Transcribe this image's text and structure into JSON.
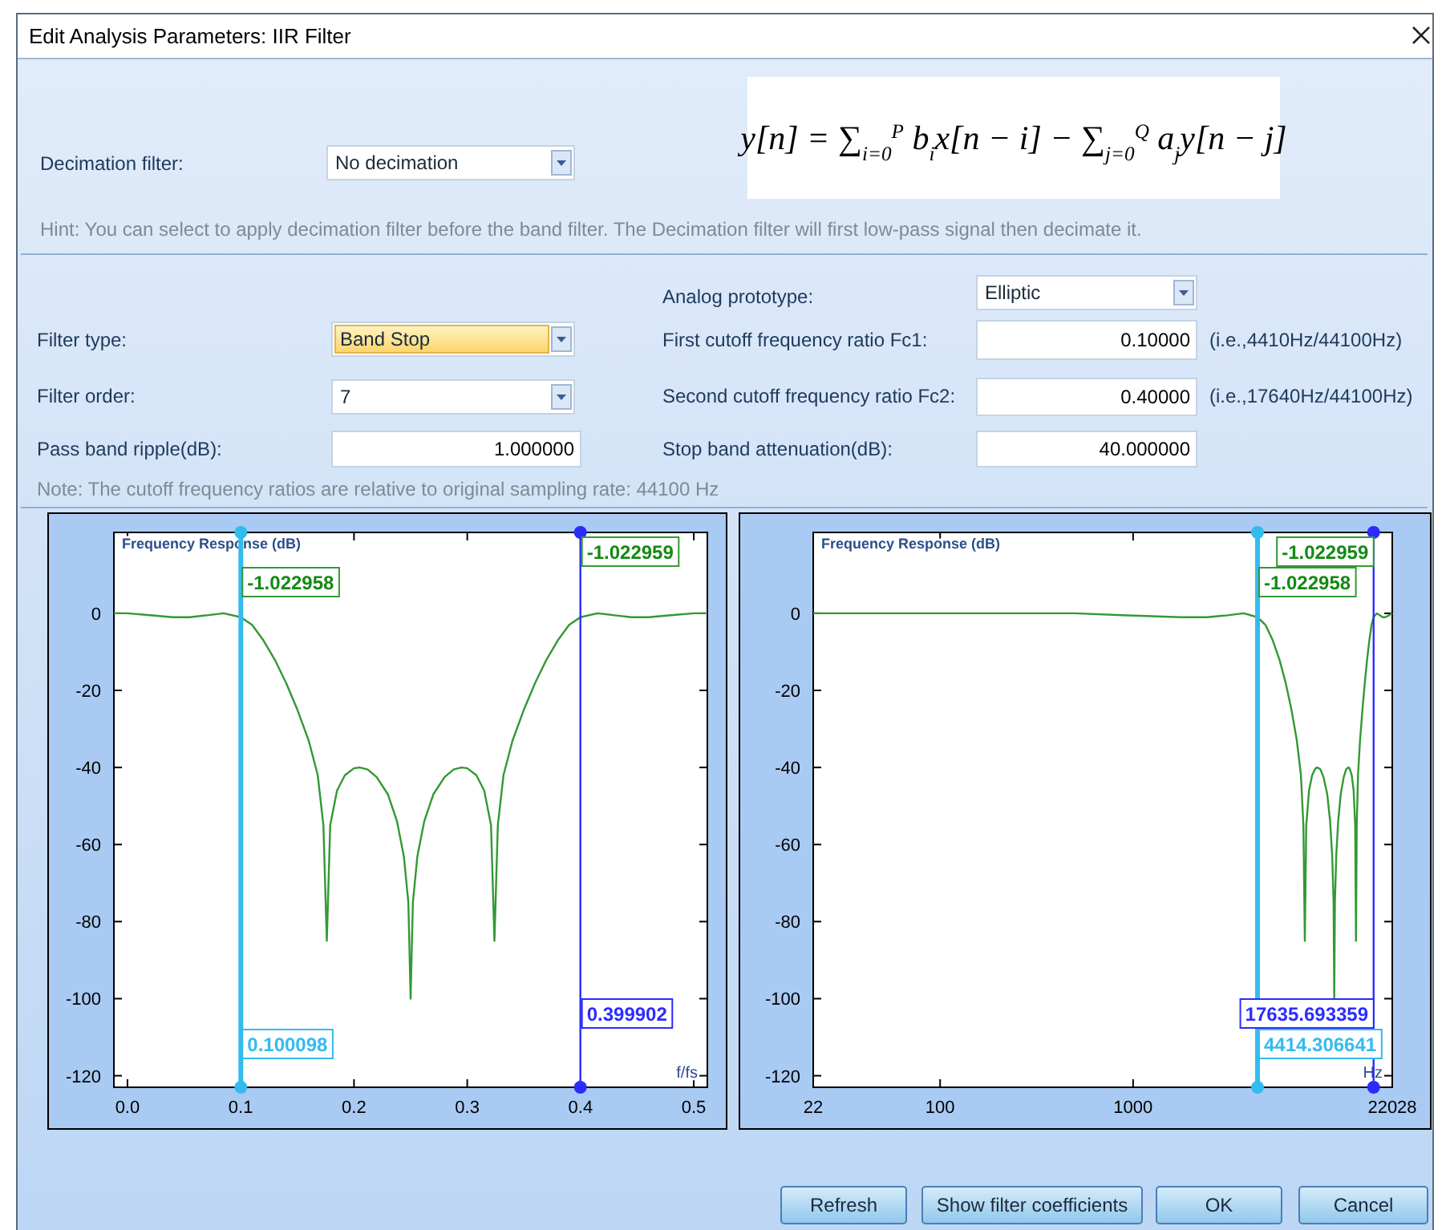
{
  "chart_data": [
    {
      "type": "other",
      "title": "Edit Analysis Parameters: IIR Filter",
      "annotations": [
        "Decimation filter:",
        "No decimation",
        "y[n] = ∑$_{i=0}$$^{P}$ b$_{i}$x[n − i] − ∑$_{j=0}$$^{Q}$ a$_{j}$y[n − j]",
        "Hint: You can select to apply decimation filter before the band filter. The Decimation filter will first low-pass signal then decimate it.",
        "Analog prototype:",
        "Elliptic",
        "Filter type:",
        "Band Stop",
        "First cutoff frequency ratio Fc1:",
        "0.10000",
        "(i.e.,4410Hz/44100Hz)",
        "Filter order:",
        "7",
        "Second cutoff frequency ratio Fc2:",
        "0.40000",
        "(i.e.,17640Hz/44100Hz)",
        "Pass band ripple(dB):",
        "1.000000",
        "Stop band attenuation(dB):",
        "40.000000",
        "Note: The cutoff frequency ratios are relative to original sampling rate: 44100 Hz",
        "Refresh",
        "Show filter coefficients",
        "OK",
        "Cancel"
      ]
    },
    {
      "type": "line",
      "title": "Frequency Response (dB)",
      "xlabel": "f/fs",
      "xlim": [
        -0.012,
        0.512
      ],
      "xticks": [
        {
          "value": 0,
          "label": "0.0"
        },
        0.1,
        0.2,
        0.3,
        0.4,
        0.5
      ],
      "ylim": [
        -123,
        21
      ],
      "yticks": [
        0,
        -20,
        -40,
        -60,
        -80,
        -100,
        -120
      ],
      "series": [
        {
          "color": "#339933",
          "x": [
            -0.012,
            0,
            0.02,
            0.04,
            0.055,
            0.07,
            0.085,
            0.1,
            0.11,
            0.12,
            0.13,
            0.14,
            0.15,
            0.16,
            0.168,
            0.173,
            0.176,
            0.179,
            0.185,
            0.192,
            0.2,
            0.205,
            0.212,
            0.22,
            0.23,
            0.238,
            0.244,
            0.248,
            0.25,
            0.252,
            0.256,
            0.262,
            0.27,
            0.28,
            0.288,
            0.295,
            0.3,
            0.308,
            0.315,
            0.321,
            0.324,
            0.327,
            0.332,
            0.34,
            0.35,
            0.36,
            0.37,
            0.38,
            0.39,
            0.4,
            0.415,
            0.43,
            0.445,
            0.46,
            0.48,
            0.5,
            0.512
          ],
          "values": [
            0,
            0,
            -0.5,
            -1,
            -1,
            -0.5,
            0,
            -1,
            -3,
            -7,
            -12,
            -18,
            -25,
            -33,
            -42,
            -55,
            -85,
            -55,
            -46,
            -42,
            -40.2,
            -40,
            -40.5,
            -42.5,
            -47,
            -54,
            -63,
            -75,
            -100,
            -75,
            -63,
            -54,
            -47,
            -42.5,
            -40.5,
            -40,
            -40.2,
            -42,
            -46,
            -55,
            -85,
            -55,
            -42,
            -33,
            -25,
            -18,
            -12,
            -7,
            -3,
            -1,
            0,
            -0.5,
            -1,
            -1,
            -0.5,
            0,
            0
          ]
        }
      ],
      "ref_lines": [
        {
          "axis": "x",
          "value": 0.100098,
          "label": "0.100098",
          "color": "#33bbee"
        },
        {
          "axis": "x",
          "value": 0.399902,
          "label": "0.399902",
          "color": "#2b2bff"
        }
      ],
      "annotations": [
        "-1.022958",
        "-1.022959"
      ]
    },
    {
      "type": "line",
      "title": "Frequency Response (dB)",
      "xlabel": "Hz",
      "log": "x",
      "xlim": [
        22,
        22028
      ],
      "xticks": [
        22,
        100,
        1000,
        22028
      ],
      "ylim": [
        -123,
        21
      ],
      "yticks": [
        0,
        -20,
        -40,
        -60,
        -80,
        -100,
        -120
      ],
      "series": [
        {
          "color": "#339933",
          "x": [
            22,
            200,
            500,
            882,
            1764,
            2426,
            3087,
            3749,
            4414,
            4851,
            5292,
            5733,
            6174,
            6615,
            7056,
            7409,
            7629,
            7762,
            7894,
            8159,
            8467,
            8820,
            9041,
            9349,
            9702,
            10143,
            10496,
            10760,
            10937,
            11025,
            11113,
            11290,
            11554,
            11907,
            12348,
            12701,
            13010,
            13230,
            13583,
            13892,
            14156,
            14288,
            14420,
            14641,
            14994,
            15435,
            15876,
            16317,
            16758,
            17199,
            17636,
            18302,
            18963,
            19625,
            20286,
            21168,
            22028
          ],
          "values": [
            0,
            0,
            0,
            -0.5,
            -1,
            -1,
            -0.5,
            0,
            -1,
            -3,
            -7,
            -12,
            -18,
            -25,
            -33,
            -42,
            -55,
            -85,
            -55,
            -46,
            -42,
            -40.2,
            -40,
            -40.5,
            -42.5,
            -47,
            -54,
            -63,
            -75,
            -100,
            -75,
            -63,
            -54,
            -47,
            -42.5,
            -40.5,
            -40,
            -40.2,
            -42,
            -46,
            -55,
            -85,
            -55,
            -42,
            -33,
            -25,
            -18,
            -12,
            -7,
            -3,
            -1,
            0,
            -0.5,
            -1,
            -1,
            -0.5,
            0
          ]
        }
      ],
      "ref_lines": [
        {
          "axis": "x",
          "value": 4414.306641,
          "label": "4414.306641",
          "color": "#33bbee"
        },
        {
          "axis": "x",
          "value": 17635.693359,
          "label": "17635.693359",
          "color": "#2b2bff"
        }
      ],
      "annotations": [
        "-1.022958",
        "-1.022959"
      ]
    }
  ]
}
